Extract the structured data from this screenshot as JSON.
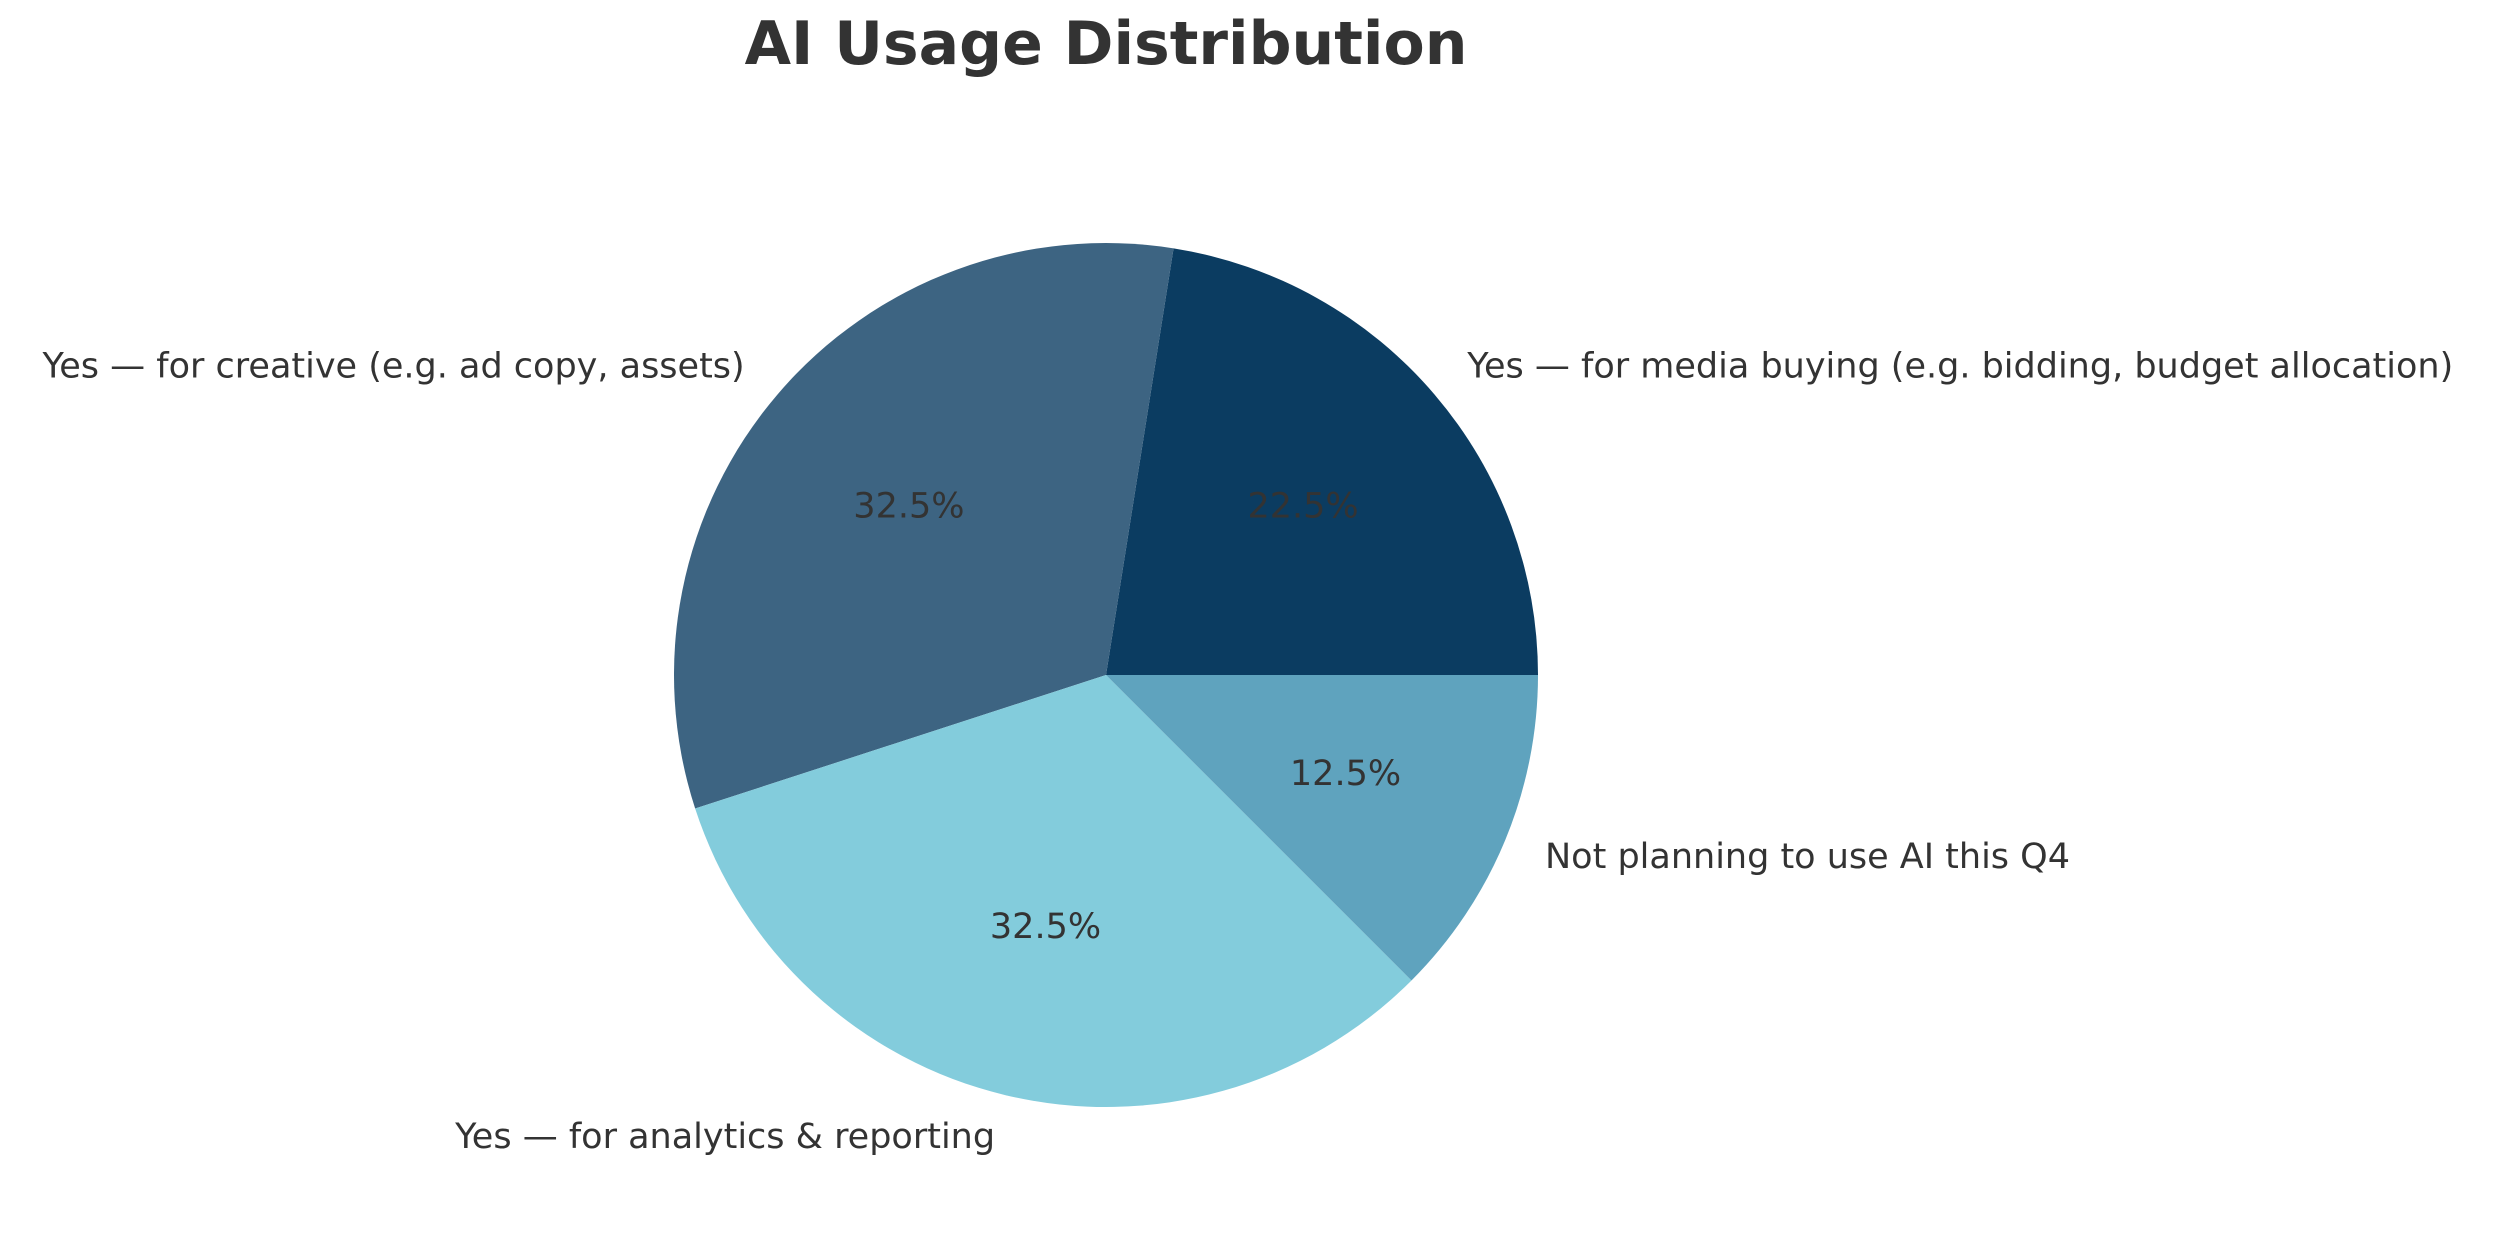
{
  "chart_data": {
    "type": "pie",
    "title": "AI Usage Distribution",
    "start_angle": 0,
    "direction": "counterclockwise",
    "slices": [
      {
        "label": "Yes — for media buying (e.g. bidding, budget allocation)",
        "value": 22.5,
        "pct_text": "22.5%",
        "color": "#0b3c61"
      },
      {
        "label": "Yes — for creative (e.g. ad copy, assets)",
        "value": 32.5,
        "pct_text": "32.5%",
        "color": "#3d6482"
      },
      {
        "label": "Yes — for analytics & reporting",
        "value": 32.5,
        "pct_text": "32.5%",
        "color": "#83ccdc"
      },
      {
        "label": "Not planning to use AI this Q4",
        "value": 12.5,
        "pct_text": "12.5%",
        "color": "#5fa3be"
      }
    ]
  }
}
